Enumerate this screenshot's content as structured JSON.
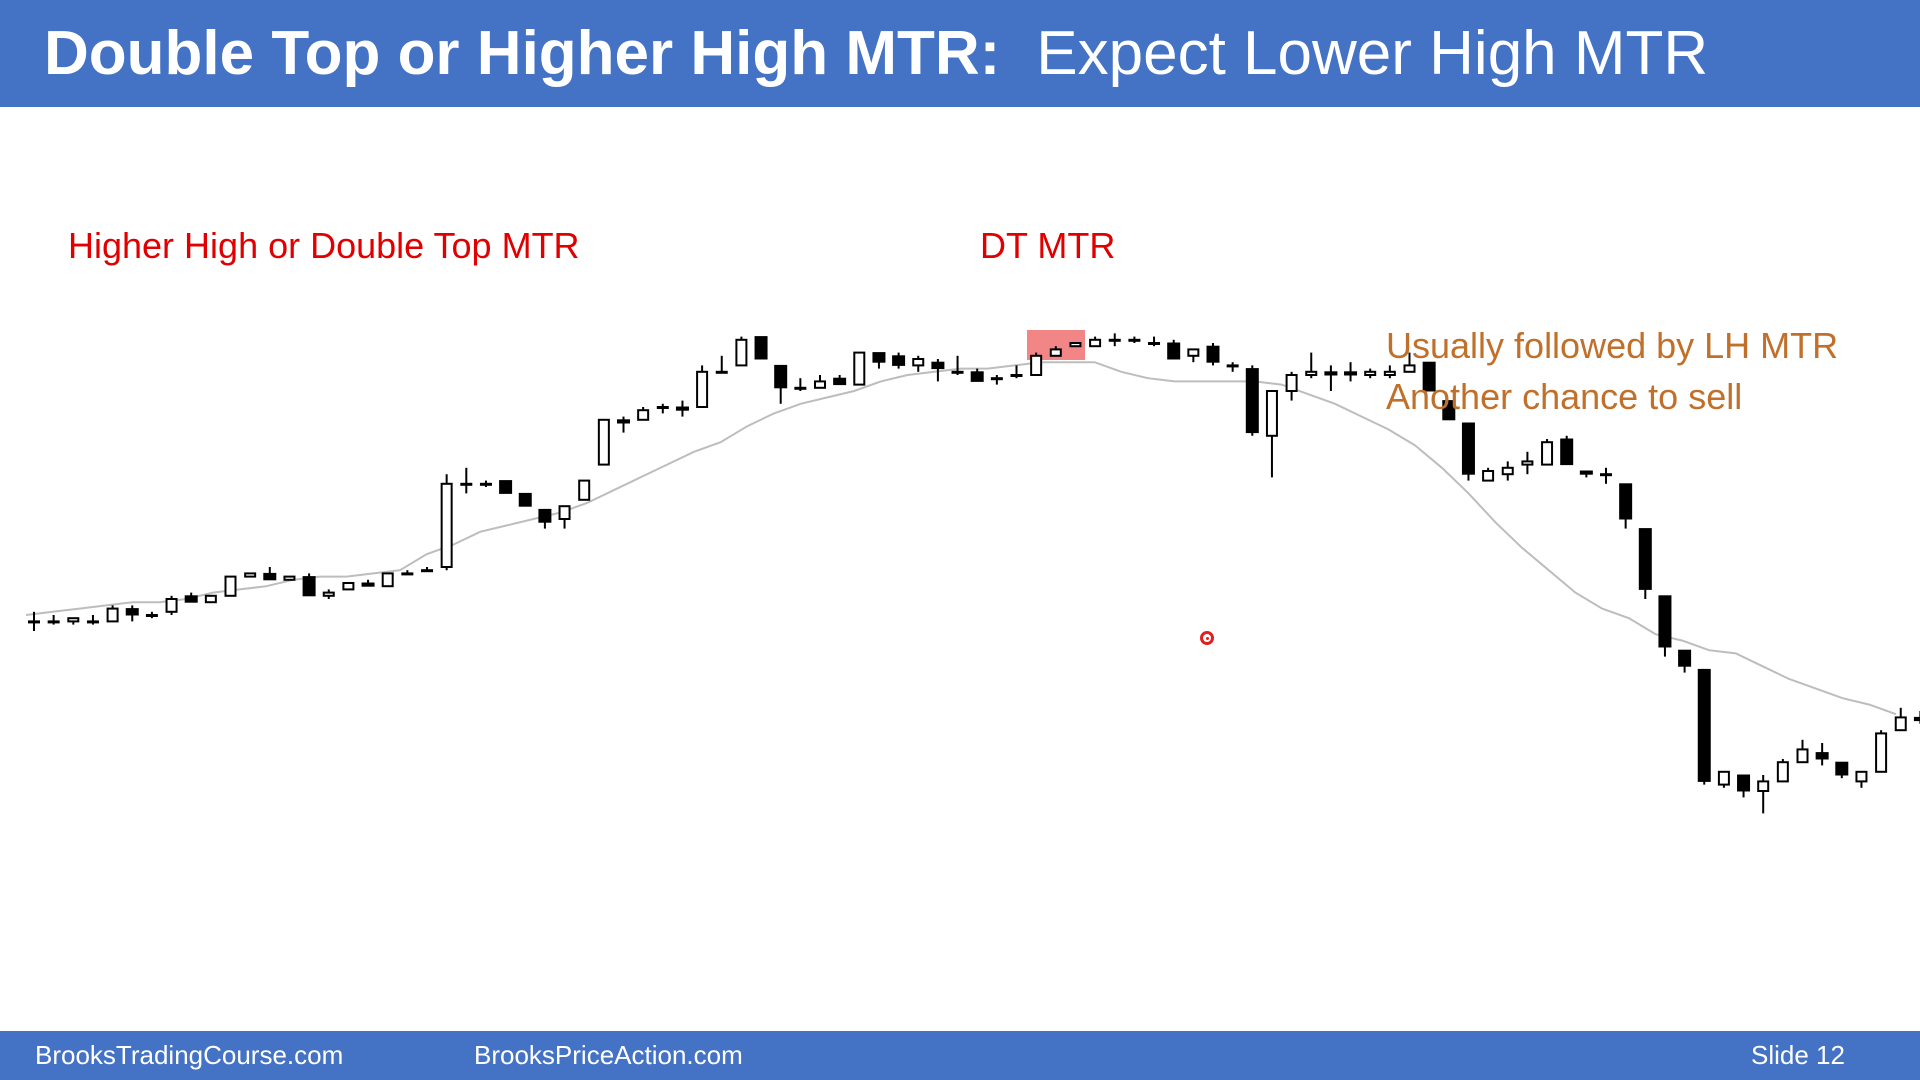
{
  "header": {
    "title_bold": "Double Top or Higher High MTR:",
    "title_regular": "Expect Lower High MTR"
  },
  "annotations": {
    "left": "Higher High or Double Top MTR",
    "dt": "DT MTR",
    "right_line1": "Usually followed by LH MTR",
    "right_line2": "Another chance to sell"
  },
  "footer": {
    "site1": "BrooksTradingCourse.com",
    "site2": "BrooksPriceAction.com",
    "slide": "Slide  12"
  },
  "colors": {
    "header_bg": "#4472c4",
    "annotation_red": "#e00000",
    "annotation_orange": "#c0702a",
    "highlight": "#f07070",
    "ema": "#bdbdbd"
  },
  "chart_data": {
    "type": "candlestick",
    "axes_shown": false,
    "grid": false,
    "series": [
      {
        "type": "ohlc",
        "values": [
          {
            "o": 88,
            "h": 91,
            "l": 85,
            "c": 88
          },
          {
            "o": 88,
            "h": 90,
            "l": 87,
            "c": 88
          },
          {
            "o": 88,
            "h": 89,
            "l": 87,
            "c": 89
          },
          {
            "o": 88,
            "h": 90,
            "l": 87,
            "c": 88
          },
          {
            "o": 88,
            "h": 93,
            "l": 88,
            "c": 92
          },
          {
            "o": 92,
            "h": 93,
            "l": 88,
            "c": 90
          },
          {
            "o": 90,
            "h": 91,
            "l": 89,
            "c": 90
          },
          {
            "o": 91,
            "h": 96,
            "l": 90,
            "c": 95
          },
          {
            "o": 96,
            "h": 97,
            "l": 94,
            "c": 94
          },
          {
            "o": 94,
            "h": 96,
            "l": 94,
            "c": 96
          },
          {
            "o": 96,
            "h": 102,
            "l": 96,
            "c": 102
          },
          {
            "o": 102,
            "h": 103,
            "l": 102,
            "c": 103
          },
          {
            "o": 103,
            "h": 105,
            "l": 101,
            "c": 101
          },
          {
            "o": 101,
            "h": 102,
            "l": 101,
            "c": 102
          },
          {
            "o": 102,
            "h": 103,
            "l": 96,
            "c": 96
          },
          {
            "o": 96,
            "h": 98,
            "l": 95,
            "c": 97
          },
          {
            "o": 98,
            "h": 100,
            "l": 98,
            "c": 100
          },
          {
            "o": 100,
            "h": 101,
            "l": 99,
            "c": 99
          },
          {
            "o": 99,
            "h": 103,
            "l": 99,
            "c": 103
          },
          {
            "o": 103,
            "h": 104,
            "l": 103,
            "c": 103
          },
          {
            "o": 104,
            "h": 105,
            "l": 104,
            "c": 104
          },
          {
            "o": 105,
            "h": 134,
            "l": 104,
            "c": 131
          },
          {
            "o": 131,
            "h": 136,
            "l": 128,
            "c": 131
          },
          {
            "o": 131,
            "h": 132,
            "l": 130,
            "c": 131
          },
          {
            "o": 132,
            "h": 132,
            "l": 128,
            "c": 128
          },
          {
            "o": 128,
            "h": 128,
            "l": 124,
            "c": 124
          },
          {
            "o": 123,
            "h": 123,
            "l": 117,
            "c": 119
          },
          {
            "o": 120,
            "h": 124,
            "l": 117,
            "c": 124
          },
          {
            "o": 126,
            "h": 132,
            "l": 126,
            "c": 132
          },
          {
            "o": 137,
            "h": 151,
            "l": 137,
            "c": 151
          },
          {
            "o": 151,
            "h": 152,
            "l": 147,
            "c": 150
          },
          {
            "o": 151,
            "h": 155,
            "l": 151,
            "c": 154
          },
          {
            "o": 155,
            "h": 156,
            "l": 153,
            "c": 155
          },
          {
            "o": 155,
            "h": 157,
            "l": 152,
            "c": 154
          },
          {
            "o": 155,
            "h": 168,
            "l": 155,
            "c": 166
          },
          {
            "o": 166,
            "h": 171,
            "l": 166,
            "c": 166
          },
          {
            "o": 168,
            "h": 177,
            "l": 168,
            "c": 176
          },
          {
            "o": 177,
            "h": 177,
            "l": 170,
            "c": 170
          },
          {
            "o": 168,
            "h": 168,
            "l": 156,
            "c": 161
          },
          {
            "o": 161,
            "h": 164,
            "l": 160,
            "c": 161
          },
          {
            "o": 161,
            "h": 165,
            "l": 161,
            "c": 163
          },
          {
            "o": 164,
            "h": 165,
            "l": 162,
            "c": 162
          },
          {
            "o": 162,
            "h": 172,
            "l": 162,
            "c": 172
          },
          {
            "o": 172,
            "h": 172,
            "l": 167,
            "c": 169
          },
          {
            "o": 171,
            "h": 172,
            "l": 167,
            "c": 168
          },
          {
            "o": 168,
            "h": 171,
            "l": 166,
            "c": 170
          },
          {
            "o": 169,
            "h": 170,
            "l": 163,
            "c": 167
          },
          {
            "o": 166,
            "h": 171,
            "l": 165,
            "c": 166
          },
          {
            "o": 166,
            "h": 167,
            "l": 163,
            "c": 163
          },
          {
            "o": 164,
            "h": 165,
            "l": 162,
            "c": 164
          },
          {
            "o": 165,
            "h": 168,
            "l": 164,
            "c": 165
          },
          {
            "o": 165,
            "h": 172,
            "l": 165,
            "c": 171
          },
          {
            "o": 171,
            "h": 174,
            "l": 171,
            "c": 173
          },
          {
            "o": 174,
            "h": 175,
            "l": 174,
            "c": 175
          },
          {
            "o": 174,
            "h": 177,
            "l": 174,
            "c": 176
          },
          {
            "o": 176,
            "h": 178,
            "l": 174,
            "c": 176
          },
          {
            "o": 176,
            "h": 177,
            "l": 175,
            "c": 176
          },
          {
            "o": 175,
            "h": 177,
            "l": 174,
            "c": 175
          },
          {
            "o": 175,
            "h": 176,
            "l": 170,
            "c": 170
          },
          {
            "o": 171,
            "h": 173,
            "l": 169,
            "c": 173
          },
          {
            "o": 174,
            "h": 175,
            "l": 168,
            "c": 169
          },
          {
            "o": 168,
            "h": 169,
            "l": 166,
            "c": 168
          },
          {
            "o": 167,
            "h": 168,
            "l": 146,
            "c": 147
          },
          {
            "o": 146,
            "h": 159,
            "l": 133,
            "c": 160
          },
          {
            "o": 160,
            "h": 166,
            "l": 157,
            "c": 165
          },
          {
            "o": 165,
            "h": 172,
            "l": 164,
            "c": 166
          },
          {
            "o": 166,
            "h": 168,
            "l": 160,
            "c": 165
          },
          {
            "o": 166,
            "h": 169,
            "l": 163,
            "c": 165
          },
          {
            "o": 165,
            "h": 167,
            "l": 164,
            "c": 166
          },
          {
            "o": 165,
            "h": 168,
            "l": 164,
            "c": 166
          },
          {
            "o": 166,
            "h": 172,
            "l": 166,
            "c": 168
          },
          {
            "o": 169,
            "h": 169,
            "l": 160,
            "c": 160
          },
          {
            "o": 157,
            "h": 157,
            "l": 151,
            "c": 151
          },
          {
            "o": 150,
            "h": 150,
            "l": 132,
            "c": 134
          },
          {
            "o": 132,
            "h": 136,
            "l": 132,
            "c": 135
          },
          {
            "o": 134,
            "h": 138,
            "l": 132,
            "c": 136
          },
          {
            "o": 137,
            "h": 141,
            "l": 134,
            "c": 138
          },
          {
            "o": 137,
            "h": 145,
            "l": 137,
            "c": 144
          },
          {
            "o": 145,
            "h": 146,
            "l": 137,
            "c": 137
          },
          {
            "o": 135,
            "h": 135,
            "l": 133,
            "c": 134
          },
          {
            "o": 134,
            "h": 136,
            "l": 131,
            "c": 134
          },
          {
            "o": 131,
            "h": 131,
            "l": 117,
            "c": 120
          },
          {
            "o": 117,
            "h": 117,
            "l": 95,
            "c": 98
          },
          {
            "o": 96,
            "h": 96,
            "l": 77,
            "c": 80
          },
          {
            "o": 79,
            "h": 79,
            "l": 72,
            "c": 74
          },
          {
            "o": 73,
            "h": 73,
            "l": 37,
            "c": 38
          },
          {
            "o": 37,
            "h": 41,
            "l": 36,
            "c": 41
          },
          {
            "o": 40,
            "h": 40,
            "l": 33,
            "c": 35
          },
          {
            "o": 35,
            "h": 40,
            "l": 28,
            "c": 38
          },
          {
            "o": 38,
            "h": 45,
            "l": 38,
            "c": 44
          },
          {
            "o": 44,
            "h": 51,
            "l": 44,
            "c": 48
          },
          {
            "o": 47,
            "h": 50,
            "l": 43,
            "c": 45
          },
          {
            "o": 44,
            "h": 44,
            "l": 39,
            "c": 40
          },
          {
            "o": 38,
            "h": 40,
            "l": 36,
            "c": 41
          },
          {
            "o": 41,
            "h": 54,
            "l": 41,
            "c": 53
          },
          {
            "o": 54,
            "h": 61,
            "l": 54,
            "c": 58
          },
          {
            "o": 58,
            "h": 60,
            "l": 56,
            "c": 57
          },
          {
            "o": 56,
            "h": 57,
            "l": 48,
            "c": 50
          },
          {
            "o": 51,
            "h": 53,
            "l": 49,
            "c": 51
          },
          {
            "o": 52,
            "h": 54,
            "l": 49,
            "c": 49
          },
          {
            "o": 48,
            "h": 49,
            "l": 44,
            "c": 46
          },
          {
            "o": 46,
            "h": 47,
            "l": 41,
            "c": 46
          },
          {
            "o": 46,
            "h": 50,
            "l": 45,
            "c": 47
          },
          {
            "o": 47,
            "h": 48,
            "l": 44,
            "c": 47
          }
        ]
      },
      {
        "type": "line",
        "values": [
          90,
          91,
          92,
          93,
          94,
          94,
          95,
          97,
          98,
          99,
          101,
          102,
          102,
          103,
          104,
          109,
          112,
          116,
          118,
          120,
          122,
          125,
          129,
          133,
          137,
          141,
          144,
          149,
          153,
          156,
          158,
          160,
          163,
          165,
          166,
          167,
          167,
          168,
          169,
          169,
          169,
          166,
          164,
          163,
          163,
          163,
          163,
          162,
          159,
          156,
          152,
          148,
          143,
          136,
          128,
          119,
          111,
          104,
          97,
          92,
          89,
          84,
          82,
          79,
          78,
          74,
          70,
          67,
          64,
          62,
          59
        ]
      }
    ]
  }
}
